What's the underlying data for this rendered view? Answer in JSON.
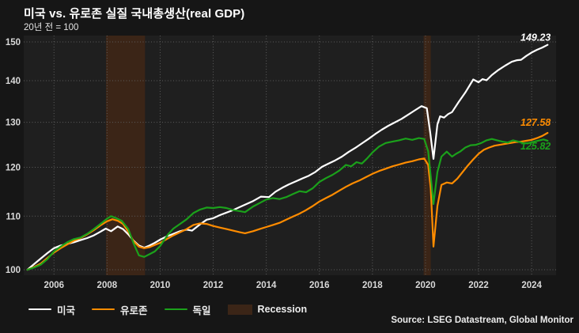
{
  "title": "미국 vs. 유로존 실질 국내총생산(real GDP)",
  "subtitle": "20년 전 = 100",
  "source": "Source: LSEG Datastream, Global Monitor",
  "colors": {
    "background": "#161616",
    "plot_background": "#1f1f1f",
    "gridline": "#5d5d5d",
    "recession": "#3b2517",
    "tick_label": "#d9d9d9",
    "us": "#ffffff",
    "eurozone": "#ff8c00",
    "germany": "#1ba11b"
  },
  "legend": {
    "items": [
      {
        "id": "us",
        "label": "미국",
        "type": "line",
        "color": "#ffffff"
      },
      {
        "id": "eurozone",
        "label": "유로존",
        "type": "line",
        "color": "#ff8c00"
      },
      {
        "id": "germany",
        "label": "독일",
        "type": "line",
        "color": "#1ba11b"
      },
      {
        "id": "recession",
        "label": "Recession",
        "type": "box",
        "color": "#3b2517"
      }
    ]
  },
  "chart_data": {
    "type": "line",
    "title": "미국 vs. 유로존 실질 국내총생산(real GDP)",
    "subtitle": "20년 전 = 100",
    "x_axis": {
      "min": 2004.86,
      "max": 2024.92,
      "ticks": [
        2006,
        2008,
        2010,
        2012,
        2014,
        2016,
        2018,
        2020,
        2022,
        2024
      ]
    },
    "y_axis": {
      "min": 100,
      "max": 150,
      "scale": "log",
      "ticks": [
        100,
        110,
        120,
        130,
        140,
        150
      ]
    },
    "grid": "dotted",
    "legend_position": "bottom",
    "recessions": [
      {
        "start": 2007.96,
        "end": 2009.43
      },
      {
        "start": 2019.93,
        "end": 2020.2
      }
    ],
    "series": [
      {
        "id": "us",
        "name": "미국",
        "color": "#ffffff",
        "end_label": "149.23",
        "end_label_dy": -5,
        "points": [
          [
            2005.0,
            100
          ],
          [
            2005.25,
            101.0
          ],
          [
            2005.5,
            102.0
          ],
          [
            2005.75,
            103.0
          ],
          [
            2006.0,
            103.9
          ],
          [
            2006.25,
            104.4
          ],
          [
            2006.5,
            104.7
          ],
          [
            2006.75,
            105.0
          ],
          [
            2007.0,
            105.4
          ],
          [
            2007.25,
            105.8
          ],
          [
            2007.5,
            106.3
          ],
          [
            2007.75,
            107.0
          ],
          [
            2007.95,
            107.6
          ],
          [
            2008.15,
            107.1
          ],
          [
            2008.4,
            108.0
          ],
          [
            2008.6,
            107.5
          ],
          [
            2008.8,
            106.5
          ],
          [
            2009.0,
            105.3
          ],
          [
            2009.2,
            104.4
          ],
          [
            2009.4,
            104.0
          ],
          [
            2009.6,
            104.4
          ],
          [
            2009.8,
            104.9
          ],
          [
            2010.0,
            105.5
          ],
          [
            2010.25,
            106.1
          ],
          [
            2010.5,
            106.6
          ],
          [
            2010.75,
            107.1
          ],
          [
            2011.0,
            107.4
          ],
          [
            2011.2,
            107.2
          ],
          [
            2011.5,
            108.4
          ],
          [
            2011.75,
            109.3
          ],
          [
            2012.0,
            109.6
          ],
          [
            2012.25,
            110.2
          ],
          [
            2012.5,
            110.7
          ],
          [
            2012.75,
            111.2
          ],
          [
            2013.0,
            111.8
          ],
          [
            2013.25,
            112.4
          ],
          [
            2013.5,
            113.0
          ],
          [
            2013.8,
            113.9
          ],
          [
            2014.1,
            113.8
          ],
          [
            2014.35,
            114.9
          ],
          [
            2014.6,
            115.7
          ],
          [
            2014.85,
            116.4
          ],
          [
            2015.1,
            117.0
          ],
          [
            2015.35,
            117.6
          ],
          [
            2015.6,
            118.2
          ],
          [
            2015.85,
            119.0
          ],
          [
            2016.1,
            120.1
          ],
          [
            2016.35,
            120.8
          ],
          [
            2016.6,
            121.5
          ],
          [
            2016.85,
            122.3
          ],
          [
            2017.1,
            123.3
          ],
          [
            2017.35,
            124.2
          ],
          [
            2017.6,
            125.2
          ],
          [
            2017.85,
            126.2
          ],
          [
            2018.1,
            127.3
          ],
          [
            2018.35,
            128.3
          ],
          [
            2018.6,
            129.2
          ],
          [
            2018.85,
            130.0
          ],
          [
            2019.1,
            130.8
          ],
          [
            2019.35,
            131.8
          ],
          [
            2019.6,
            132.8
          ],
          [
            2019.85,
            133.8
          ],
          [
            2020.05,
            133.3
          ],
          [
            2020.18,
            127.5
          ],
          [
            2020.3,
            121.8
          ],
          [
            2020.45,
            129.5
          ],
          [
            2020.55,
            131.4
          ],
          [
            2020.7,
            131.1
          ],
          [
            2020.85,
            131.9
          ],
          [
            2021.0,
            132.4
          ],
          [
            2021.25,
            134.8
          ],
          [
            2021.5,
            137.1
          ],
          [
            2021.8,
            140.3
          ],
          [
            2022.0,
            139.6
          ],
          [
            2022.15,
            140.4
          ],
          [
            2022.3,
            140.1
          ],
          [
            2022.5,
            141.4
          ],
          [
            2022.75,
            142.7
          ],
          [
            2023.0,
            143.8
          ],
          [
            2023.25,
            144.8
          ],
          [
            2023.45,
            145.2
          ],
          [
            2023.6,
            145.3
          ],
          [
            2023.8,
            146.3
          ],
          [
            2024.0,
            147.2
          ],
          [
            2024.2,
            147.9
          ],
          [
            2024.4,
            148.5
          ],
          [
            2024.6,
            149.23
          ]
        ]
      },
      {
        "id": "eurozone",
        "name": "유로존",
        "color": "#ff8c00",
        "end_label": "127.58",
        "end_label_dy": -9,
        "points": [
          [
            2005.0,
            100
          ],
          [
            2005.25,
            100.5
          ],
          [
            2005.5,
            101.1
          ],
          [
            2005.75,
            102.1
          ],
          [
            2006.0,
            103.1
          ],
          [
            2006.25,
            103.9
          ],
          [
            2006.5,
            104.6
          ],
          [
            2006.75,
            105.3
          ],
          [
            2007.0,
            105.8
          ],
          [
            2007.25,
            106.5
          ],
          [
            2007.5,
            107.3
          ],
          [
            2007.75,
            108.2
          ],
          [
            2008.0,
            109.0
          ],
          [
            2008.2,
            109.4
          ],
          [
            2008.4,
            109.1
          ],
          [
            2008.6,
            108.5
          ],
          [
            2008.8,
            107.0
          ],
          [
            2009.0,
            105.2
          ],
          [
            2009.2,
            104.2
          ],
          [
            2009.4,
            103.9
          ],
          [
            2009.6,
            104.1
          ],
          [
            2009.8,
            104.5
          ],
          [
            2010.0,
            104.9
          ],
          [
            2010.25,
            105.6
          ],
          [
            2010.5,
            106.3
          ],
          [
            2010.75,
            106.9
          ],
          [
            2011.0,
            107.5
          ],
          [
            2011.25,
            108.3
          ],
          [
            2011.5,
            108.6
          ],
          [
            2011.75,
            108.5
          ],
          [
            2012.0,
            108.1
          ],
          [
            2012.25,
            107.8
          ],
          [
            2012.5,
            107.5
          ],
          [
            2012.75,
            107.2
          ],
          [
            2013.0,
            106.9
          ],
          [
            2013.2,
            106.7
          ],
          [
            2013.5,
            107.1
          ],
          [
            2013.75,
            107.5
          ],
          [
            2014.0,
            107.9
          ],
          [
            2014.25,
            108.3
          ],
          [
            2014.5,
            108.7
          ],
          [
            2014.75,
            109.3
          ],
          [
            2015.0,
            109.9
          ],
          [
            2015.25,
            110.5
          ],
          [
            2015.5,
            111.2
          ],
          [
            2015.75,
            112.0
          ],
          [
            2016.0,
            112.9
          ],
          [
            2016.25,
            113.6
          ],
          [
            2016.5,
            114.3
          ],
          [
            2016.75,
            115.1
          ],
          [
            2017.0,
            115.9
          ],
          [
            2017.25,
            116.6
          ],
          [
            2017.5,
            117.2
          ],
          [
            2017.75,
            117.9
          ],
          [
            2018.0,
            118.6
          ],
          [
            2018.25,
            119.2
          ],
          [
            2018.5,
            119.7
          ],
          [
            2018.75,
            120.2
          ],
          [
            2019.0,
            120.6
          ],
          [
            2019.25,
            121.0
          ],
          [
            2019.5,
            121.3
          ],
          [
            2019.75,
            121.7
          ],
          [
            2019.95,
            121.9
          ],
          [
            2020.1,
            120.5
          ],
          [
            2020.2,
            115.5
          ],
          [
            2020.3,
            104.2
          ],
          [
            2020.45,
            112.0
          ],
          [
            2020.6,
            116.3
          ],
          [
            2020.8,
            116.8
          ],
          [
            2021.0,
            116.6
          ],
          [
            2021.2,
            117.6
          ],
          [
            2021.4,
            119.0
          ],
          [
            2021.6,
            120.4
          ],
          [
            2021.8,
            121.7
          ],
          [
            2022.0,
            122.9
          ],
          [
            2022.2,
            123.8
          ],
          [
            2022.4,
            124.3
          ],
          [
            2022.6,
            124.7
          ],
          [
            2022.8,
            124.9
          ],
          [
            2023.0,
            125.1
          ],
          [
            2023.2,
            125.3
          ],
          [
            2023.4,
            125.5
          ],
          [
            2023.6,
            125.6
          ],
          [
            2023.8,
            125.8
          ],
          [
            2024.0,
            126.0
          ],
          [
            2024.2,
            126.4
          ],
          [
            2024.4,
            126.9
          ],
          [
            2024.6,
            127.58
          ]
        ]
      },
      {
        "id": "germany",
        "name": "독일",
        "color": "#1ba11b",
        "end_label": "125.82",
        "end_label_dy": 11,
        "points": [
          [
            2005.0,
            100
          ],
          [
            2005.25,
            100.4
          ],
          [
            2005.5,
            100.9
          ],
          [
            2005.75,
            101.9
          ],
          [
            2006.0,
            103.3
          ],
          [
            2006.25,
            104.2
          ],
          [
            2006.5,
            105.0
          ],
          [
            2006.75,
            105.6
          ],
          [
            2007.0,
            105.9
          ],
          [
            2007.25,
            106.6
          ],
          [
            2007.5,
            107.5
          ],
          [
            2007.75,
            108.5
          ],
          [
            2008.0,
            109.5
          ],
          [
            2008.15,
            110.0
          ],
          [
            2008.35,
            109.6
          ],
          [
            2008.55,
            109.1
          ],
          [
            2008.8,
            107.5
          ],
          [
            2009.0,
            104.8
          ],
          [
            2009.2,
            102.6
          ],
          [
            2009.4,
            102.3
          ],
          [
            2009.6,
            102.8
          ],
          [
            2009.8,
            103.3
          ],
          [
            2010.0,
            104.3
          ],
          [
            2010.3,
            106.5
          ],
          [
            2010.5,
            107.6
          ],
          [
            2010.75,
            108.5
          ],
          [
            2011.0,
            109.4
          ],
          [
            2011.25,
            110.6
          ],
          [
            2011.5,
            111.3
          ],
          [
            2011.75,
            111.7
          ],
          [
            2012.0,
            111.6
          ],
          [
            2012.25,
            111.8
          ],
          [
            2012.5,
            111.6
          ],
          [
            2012.75,
            111.2
          ],
          [
            2013.0,
            111.0
          ],
          [
            2013.2,
            110.8
          ],
          [
            2013.5,
            111.9
          ],
          [
            2013.75,
            112.6
          ],
          [
            2014.0,
            113.3
          ],
          [
            2014.25,
            113.6
          ],
          [
            2014.5,
            113.4
          ],
          [
            2014.75,
            113.8
          ],
          [
            2015.0,
            114.4
          ],
          [
            2015.25,
            115.0
          ],
          [
            2015.5,
            114.8
          ],
          [
            2015.75,
            115.6
          ],
          [
            2016.0,
            116.9
          ],
          [
            2016.25,
            117.7
          ],
          [
            2016.5,
            118.4
          ],
          [
            2016.75,
            119.3
          ],
          [
            2017.0,
            120.5
          ],
          [
            2017.2,
            120.2
          ],
          [
            2017.4,
            121.1
          ],
          [
            2017.6,
            120.8
          ],
          [
            2017.8,
            121.9
          ],
          [
            2018.0,
            123.2
          ],
          [
            2018.25,
            124.5
          ],
          [
            2018.5,
            125.3
          ],
          [
            2018.75,
            125.6
          ],
          [
            2019.0,
            125.9
          ],
          [
            2019.25,
            126.3
          ],
          [
            2019.5,
            126.0
          ],
          [
            2019.75,
            126.4
          ],
          [
            2019.95,
            126.2
          ],
          [
            2020.1,
            123.5
          ],
          [
            2020.2,
            118.0
          ],
          [
            2020.3,
            112.4
          ],
          [
            2020.45,
            119.0
          ],
          [
            2020.6,
            122.3
          ],
          [
            2020.8,
            123.4
          ],
          [
            2021.0,
            122.3
          ],
          [
            2021.15,
            122.9
          ],
          [
            2021.3,
            123.4
          ],
          [
            2021.5,
            124.3
          ],
          [
            2021.7,
            124.8
          ],
          [
            2021.9,
            124.9
          ],
          [
            2022.1,
            125.3
          ],
          [
            2022.3,
            125.9
          ],
          [
            2022.5,
            126.2
          ],
          [
            2022.7,
            125.9
          ],
          [
            2022.9,
            125.6
          ],
          [
            2023.1,
            125.4
          ],
          [
            2023.3,
            125.9
          ],
          [
            2023.5,
            125.6
          ],
          [
            2023.7,
            125.2
          ],
          [
            2023.9,
            125.3
          ],
          [
            2024.1,
            125.6
          ],
          [
            2024.3,
            125.9
          ],
          [
            2024.45,
            126.1
          ],
          [
            2024.6,
            125.82
          ]
        ]
      }
    ]
  }
}
